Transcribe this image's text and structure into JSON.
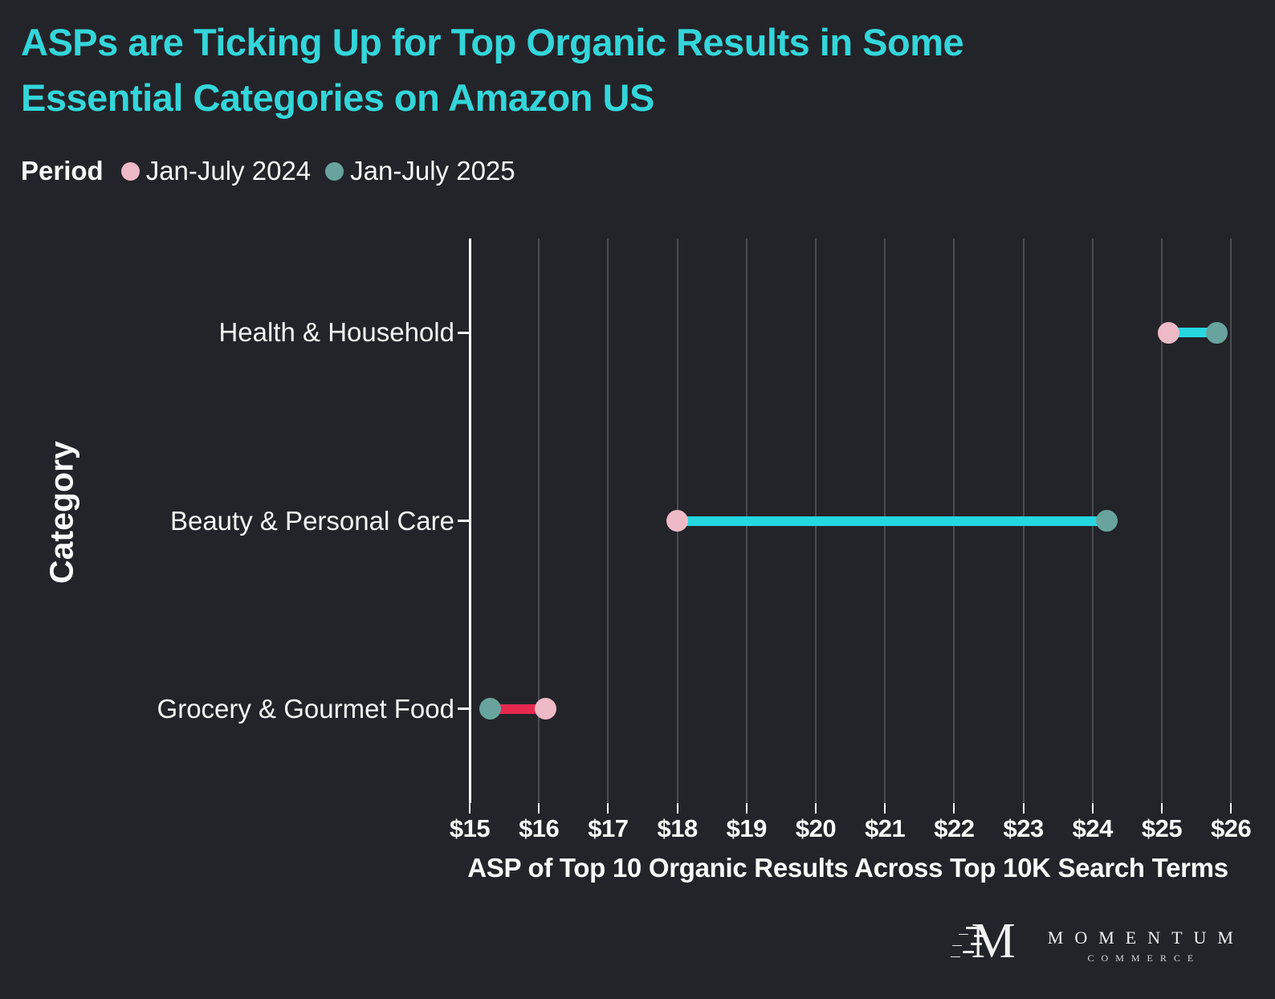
{
  "title": {
    "lines": [
      "ASPs are Ticking Up for Top Organic Results in Some",
      "Essential Categories on Amazon US"
    ]
  },
  "legend": {
    "label": "Period",
    "items": [
      {
        "label": "Jan-July 2024",
        "color_key": "pink"
      },
      {
        "label": "Jan-July 2025",
        "color_key": "teal"
      }
    ]
  },
  "chart_data": {
    "type": "dumbbell",
    "title": "ASPs are Ticking Up for Top Organic Results in Some Essential Categories on Amazon US",
    "categories": [
      "Health & Household",
      "Beauty & Personal Care",
      "Grocery & Gourmet Food"
    ],
    "series": [
      {
        "name": "Jan-July 2024",
        "values": [
          25.1,
          18.0,
          16.1
        ]
      },
      {
        "name": "Jan-July 2025",
        "values": [
          25.8,
          24.2,
          15.3
        ]
      }
    ],
    "xlabel": "ASP of Top 10 Organic Results Across Top 10K Search Terms",
    "ylabel": "Category",
    "xlim": [
      15,
      26
    ],
    "x_tick_step": 1,
    "x_tick_prefix": "$",
    "grid": "vertical",
    "legend_position": "top-left",
    "connector_rule": "cyan connector when 2025 value is higher than 2024, red connector when lower"
  },
  "colors": {
    "background": "#232429",
    "title": "#33d6da",
    "text": "#f7f7f7",
    "grid": "#4a4d54",
    "axis": "#ffffff",
    "pink": "#eebac7",
    "teal": "#68a49d",
    "increase": "#25d8e0",
    "decrease": "#e6294e"
  },
  "logo": {
    "monogram": "M",
    "name": "MOMENTUM",
    "subtitle": "COMMERCE"
  }
}
